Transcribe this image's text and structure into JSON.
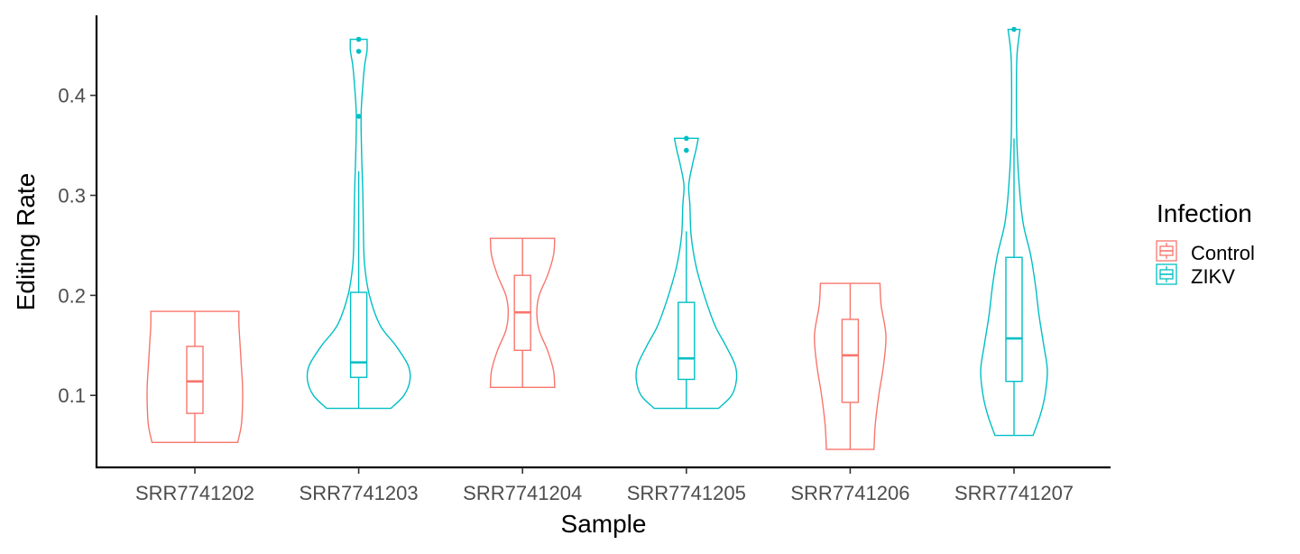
{
  "chart_data": {
    "type": "violin",
    "xlabel": "Sample",
    "ylabel": "Editing Rate",
    "ylim": [
      0.028,
      0.48
    ],
    "yticks": [
      0.1,
      0.2,
      0.3,
      0.4
    ],
    "ytick_labels": [
      "0.1",
      "0.2",
      "0.3",
      "0.4"
    ],
    "grid": false,
    "legend": {
      "title": "Infection",
      "placement": "right",
      "entries": [
        "Control",
        "ZIKV"
      ]
    },
    "colors": {
      "Control": "#F8766D",
      "ZIKV": "#00BFC4"
    },
    "categories": [
      "SRR7741202",
      "SRR7741203",
      "SRR7741204",
      "SRR7741205",
      "SRR7741206",
      "SRR7741207"
    ],
    "groups": [
      {
        "category": "SRR7741202",
        "infection": "Control",
        "min": 0.053,
        "q1": 0.082,
        "median": 0.114,
        "q3": 0.149,
        "max": 0.184,
        "outliers": [],
        "violin": [
          [
            0.053,
            0.72
          ],
          [
            0.07,
            0.78
          ],
          [
            0.09,
            0.8
          ],
          [
            0.11,
            0.8
          ],
          [
            0.13,
            0.78
          ],
          [
            0.15,
            0.76
          ],
          [
            0.17,
            0.74
          ],
          [
            0.184,
            0.74
          ]
        ]
      },
      {
        "category": "SRR7741203",
        "infection": "ZIKV",
        "min": 0.087,
        "q1": 0.118,
        "median": 0.133,
        "q3": 0.203,
        "max": 0.324,
        "outliers": [
          0.379,
          0.444,
          0.456
        ],
        "violin": [
          [
            0.087,
            0.54
          ],
          [
            0.1,
            0.76
          ],
          [
            0.115,
            0.86
          ],
          [
            0.13,
            0.83
          ],
          [
            0.15,
            0.62
          ],
          [
            0.17,
            0.36
          ],
          [
            0.2,
            0.18
          ],
          [
            0.23,
            0.1
          ],
          [
            0.26,
            0.08
          ],
          [
            0.3,
            0.07
          ],
          [
            0.34,
            0.05
          ],
          [
            0.38,
            0.04
          ],
          [
            0.41,
            0.07
          ],
          [
            0.43,
            0.1
          ],
          [
            0.445,
            0.14
          ],
          [
            0.456,
            0.14
          ]
        ]
      },
      {
        "category": "SRR7741204",
        "infection": "Control",
        "min": 0.108,
        "q1": 0.145,
        "median": 0.183,
        "q3": 0.22,
        "max": 0.257,
        "outliers": [],
        "violin": [
          [
            0.108,
            0.54
          ],
          [
            0.125,
            0.52
          ],
          [
            0.145,
            0.42
          ],
          [
            0.165,
            0.28
          ],
          [
            0.183,
            0.24
          ],
          [
            0.2,
            0.28
          ],
          [
            0.22,
            0.42
          ],
          [
            0.24,
            0.52
          ],
          [
            0.257,
            0.54
          ]
        ]
      },
      {
        "category": "SRR7741205",
        "infection": "ZIKV",
        "min": 0.087,
        "q1": 0.116,
        "median": 0.137,
        "q3": 0.193,
        "max": 0.264,
        "outliers": [
          0.345,
          0.357
        ],
        "violin": [
          [
            0.087,
            0.54
          ],
          [
            0.1,
            0.76
          ],
          [
            0.115,
            0.84
          ],
          [
            0.13,
            0.82
          ],
          [
            0.15,
            0.66
          ],
          [
            0.17,
            0.48
          ],
          [
            0.2,
            0.3
          ],
          [
            0.23,
            0.16
          ],
          [
            0.26,
            0.08
          ],
          [
            0.29,
            0.06
          ],
          [
            0.31,
            0.04
          ],
          [
            0.33,
            0.1
          ],
          [
            0.345,
            0.16
          ],
          [
            0.357,
            0.2
          ]
        ]
      },
      {
        "category": "SRR7741206",
        "infection": "Control",
        "min": 0.046,
        "q1": 0.093,
        "median": 0.14,
        "q3": 0.176,
        "max": 0.212,
        "outliers": [],
        "violin": [
          [
            0.046,
            0.4
          ],
          [
            0.07,
            0.42
          ],
          [
            0.1,
            0.48
          ],
          [
            0.13,
            0.56
          ],
          [
            0.16,
            0.6
          ],
          [
            0.19,
            0.52
          ],
          [
            0.212,
            0.5
          ]
        ]
      },
      {
        "category": "SRR7741207",
        "infection": "ZIKV",
        "min": 0.06,
        "q1": 0.114,
        "median": 0.157,
        "q3": 0.238,
        "max": 0.357,
        "outliers": [
          0.466
        ],
        "violin": [
          [
            0.06,
            0.32
          ],
          [
            0.08,
            0.44
          ],
          [
            0.1,
            0.52
          ],
          [
            0.125,
            0.56
          ],
          [
            0.15,
            0.5
          ],
          [
            0.18,
            0.42
          ],
          [
            0.21,
            0.36
          ],
          [
            0.24,
            0.28
          ],
          [
            0.27,
            0.16
          ],
          [
            0.3,
            0.1
          ],
          [
            0.35,
            0.05
          ],
          [
            0.4,
            0.04
          ],
          [
            0.44,
            0.05
          ],
          [
            0.466,
            0.1
          ]
        ]
      }
    ]
  }
}
